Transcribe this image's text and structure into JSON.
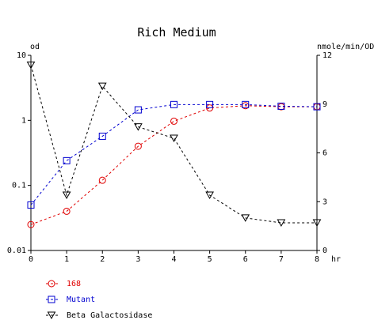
{
  "chart_data": {
    "type": "line",
    "title": "Rich Medium",
    "xlabel": "hr",
    "ylabel_left": "od",
    "ylabel_right": "nmole/min/OD",
    "x": [
      0,
      1,
      2,
      3,
      4,
      5,
      6,
      7,
      8
    ],
    "x_ticks": [
      "0",
      "1",
      "2",
      "3",
      "4",
      "5",
      "6",
      "7",
      "8"
    ],
    "xlim": [
      0,
      8
    ],
    "y_left_scale": "log",
    "y_left_lim": [
      0.01,
      10
    ],
    "y_left_ticks": [
      "10",
      "1",
      "0.1",
      "0.01"
    ],
    "y_right_lim": [
      0,
      12
    ],
    "y_right_ticks": [
      "12",
      "9",
      "6",
      "3",
      "0"
    ],
    "legend_position": "bottom-left",
    "series": [
      {
        "name": "168",
        "axis": "left",
        "marker": "circle",
        "color": "#e00000",
        "values": [
          0.025,
          0.04,
          0.12,
          0.4,
          0.97,
          1.55,
          1.68,
          1.62,
          1.62
        ]
      },
      {
        "name": "Mutant",
        "axis": "left",
        "marker": "square",
        "color": "#0000d0",
        "values": [
          0.05,
          0.24,
          0.57,
          1.45,
          1.75,
          1.75,
          1.75,
          1.65,
          1.62
        ]
      },
      {
        "name": "Beta Galactosidase",
        "axis": "right",
        "marker": "triangle",
        "color": "#000000",
        "values": [
          11.4,
          3.4,
          10.1,
          7.6,
          6.9,
          3.4,
          2.0,
          1.7,
          1.7
        ]
      }
    ]
  }
}
